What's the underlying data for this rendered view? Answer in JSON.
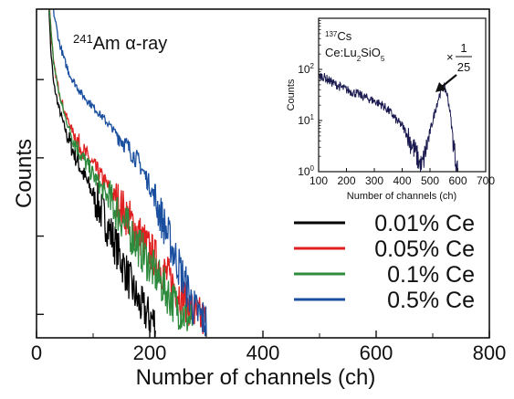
{
  "chart_data": [
    {
      "type": "line",
      "annotation": "²⁴¹Am α-ray",
      "annotation_parts": {
        "mass": "241",
        "element": "Am α-ray"
      },
      "xlabel": "Number of channels (ch)",
      "ylabel": "Counts",
      "xlim": [
        0,
        800
      ],
      "y_scale": "log",
      "y_tick_labels_shown": false,
      "x_ticks": [
        "0",
        "200",
        "400",
        "600",
        "800"
      ],
      "legend_position": "lower-right",
      "series": [
        {
          "name": "0.01% Ce",
          "color": "#000000",
          "x": [
            20,
            25,
            30,
            40,
            50,
            60,
            70,
            80,
            100,
            120,
            140,
            160,
            180,
            200,
            210
          ],
          "y": [
            20000,
            2500,
            900,
            420,
            240,
            150,
            98,
            68,
            34,
            17,
            7.5,
            3.2,
            1.4,
            0.9,
            0.8
          ]
        },
        {
          "name": "0.05% Ce",
          "color": "#e02020",
          "x": [
            20,
            25,
            30,
            40,
            50,
            60,
            80,
            100,
            120,
            140,
            160,
            180,
            200,
            220,
            240,
            260,
            280,
            300
          ],
          "y": [
            20000,
            5000,
            1600,
            700,
            380,
            250,
            130,
            80,
            50,
            30,
            18,
            11,
            6.5,
            4,
            2.5,
            1.6,
            1,
            0.8
          ]
        },
        {
          "name": "0.1% Ce",
          "color": "#2e8b3e",
          "x": [
            20,
            25,
            30,
            40,
            50,
            60,
            80,
            100,
            120,
            140,
            160,
            180,
            200,
            220,
            240,
            260,
            275
          ],
          "y": [
            20000,
            4500,
            1700,
            650,
            340,
            210,
            105,
            60,
            36,
            22,
            13,
            7.5,
            4.3,
            2.5,
            1.5,
            1,
            0.8
          ]
        },
        {
          "name": "0.5% Ce",
          "color": "#1a4fa0",
          "x": [
            20,
            25,
            30,
            40,
            50,
            60,
            80,
            100,
            120,
            140,
            160,
            180,
            200,
            220,
            240,
            260,
            280,
            300
          ],
          "y": [
            20000,
            15000,
            7500,
            3000,
            1700,
            1100,
            650,
            450,
            310,
            210,
            140,
            90,
            45,
            18,
            7,
            2.8,
            1.1,
            0.8
          ]
        }
      ]
    },
    {
      "type": "line",
      "annotation_lines": [
        "¹³⁷Cs",
        "Ce:Lu₂SiO₅"
      ],
      "annotation_parts": {
        "line1": {
          "mass": "137",
          "element": "Cs"
        },
        "line2": {
          "a": "Ce:Lu",
          "sub1": "2",
          "b": "SiO",
          "sub2": "5"
        }
      },
      "scale_factor": "×1/25",
      "scale_parts": {
        "times": "×",
        "numerator": "1",
        "denominator": "25"
      },
      "xlabel": "Number of channels (ch)",
      "ylabel": "Counts",
      "xlim": [
        100,
        700
      ],
      "ylim": [
        1,
        1000
      ],
      "y_scale": "log",
      "x_ticks": [
        "100",
        "200",
        "300",
        "400",
        "500",
        "600",
        "700"
      ],
      "y_ticks": [
        {
          "base": "10",
          "exp": "0"
        },
        {
          "base": "10",
          "exp": "1"
        },
        {
          "base": "10",
          "exp": "2"
        }
      ],
      "series": [
        {
          "color": "#1a1a50",
          "x": [
            100,
            110,
            130,
            150,
            180,
            210,
            240,
            270,
            300,
            330,
            360,
            380,
            400,
            420,
            440,
            460,
            470,
            480,
            490,
            500,
            510,
            520,
            530,
            540,
            550,
            560,
            570,
            580,
            590,
            600
          ],
          "y": [
            70,
            75,
            65,
            55,
            45,
            38,
            33,
            28,
            24,
            20,
            14,
            10,
            8,
            5,
            3,
            1.6,
            1.2,
            2,
            3.5,
            6,
            10,
            17,
            27,
            40,
            45,
            35,
            18,
            6,
            2,
            1
          ]
        }
      ]
    }
  ]
}
